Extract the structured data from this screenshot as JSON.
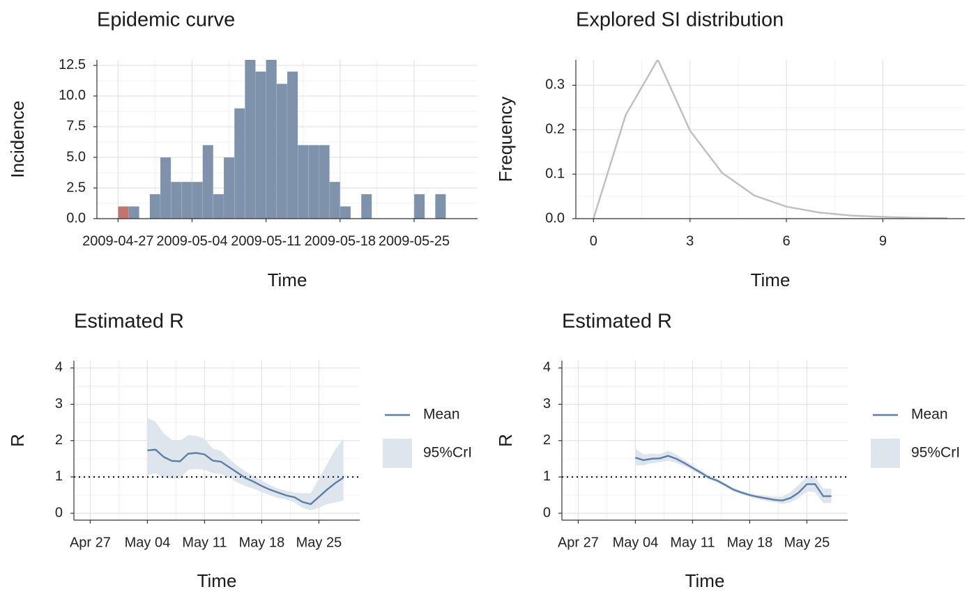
{
  "chart_data": [
    {
      "type": "histogram",
      "title": "Epidemic curve",
      "xlabel": "Time",
      "ylabel": "Incidence",
      "bins": [
        "2009-04-27",
        "2009-04-28",
        "2009-04-29",
        "2009-04-30",
        "2009-05-01",
        "2009-05-02",
        "2009-05-03",
        "2009-05-04",
        "2009-05-05",
        "2009-05-06",
        "2009-05-07",
        "2009-05-08",
        "2009-05-09",
        "2009-05-10",
        "2009-05-11",
        "2009-05-12",
        "2009-05-13",
        "2009-05-14",
        "2009-05-15",
        "2009-05-16",
        "2009-05-17",
        "2009-05-18",
        "2009-05-19",
        "2009-05-20",
        "2009-05-21",
        "2009-05-22",
        "2009-05-23",
        "2009-05-24",
        "2009-05-25",
        "2009-05-26",
        "2009-05-27",
        "2009-05-28"
      ],
      "values": [
        1,
        1,
        0,
        2,
        5,
        3,
        3,
        3,
        6,
        2,
        5,
        9,
        13,
        12,
        13,
        11,
        12,
        6,
        6,
        6,
        3,
        1,
        0,
        2,
        0,
        0,
        0,
        0,
        2,
        0,
        2
      ],
      "colors": [
        "#c47470",
        "#7e93ab",
        "#7e93ab",
        "#7e93ab",
        "#7e93ab",
        "#7e93ab",
        "#7e93ab",
        "#7e93ab",
        "#7e93ab",
        "#7e93ab",
        "#7e93ab",
        "#7e93ab",
        "#7e93ab",
        "#7e93ab",
        "#7e93ab",
        "#7e93ab",
        "#7e93ab",
        "#7e93ab",
        "#7e93ab",
        "#7e93ab",
        "#7e93ab",
        "#7e93ab",
        "#7e93ab",
        "#7e93ab",
        "#7e93ab",
        "#7e93ab",
        "#7e93ab",
        "#7e93ab",
        "#7e93ab",
        "#7e93ab",
        "#7e93ab"
      ],
      "xlim": [
        "2009-04-25",
        "2009-05-31"
      ],
      "xticks": [
        "2009-04-27",
        "2009-05-04",
        "2009-05-11",
        "2009-05-18",
        "2009-05-25"
      ],
      "ylim": [
        0,
        12.95
      ],
      "yticks": [
        {
          "value": 0,
          "label": "0.0"
        },
        2.5,
        {
          "value": 5,
          "label": "5.0"
        },
        7.5,
        {
          "value": 10,
          "label": "10.0"
        },
        12.5
      ],
      "grid": true
    },
    {
      "type": "line",
      "title": "Explored SI distribution",
      "xlabel": "Time",
      "ylabel": "Frequency",
      "x": [
        0,
        1,
        2,
        3,
        4,
        5,
        6,
        7,
        8,
        9,
        10,
        11
      ],
      "series": [
        {
          "color": "#bebebe",
          "values": [
            0,
            0.233,
            0.358,
            0.198,
            0.103,
            0.052,
            0.027,
            0.014,
            0.007,
            0.004,
            0.002,
            0.001
          ]
        }
      ],
      "xlim": [
        -0.55,
        11.55
      ],
      "xticks": [
        0,
        3,
        6,
        9
      ],
      "ylim": [
        0,
        0.357
      ],
      "yticks": [
        {
          "value": 0,
          "label": "0.0"
        },
        0.1,
        0.2,
        0.3
      ],
      "grid": true
    },
    {
      "type": "line",
      "title": "Estimated R",
      "xlabel": "Time",
      "ylabel": "R",
      "x": [
        "May 04",
        "May 05",
        "May 06",
        "May 07",
        "May 08",
        "May 09",
        "May 10",
        "May 11",
        "May 12",
        "May 13",
        "May 14",
        "May 15",
        "May 16",
        "May 17",
        "May 18",
        "May 19",
        "May 20",
        "May 21",
        "May 22",
        "May 23",
        "May 24",
        "May 25",
        "May 26",
        "May 27",
        "May 28"
      ],
      "series": [
        {
          "name": "Mean",
          "color": "#5a7ea6",
          "values": [
            1.73,
            1.75,
            1.55,
            1.44,
            1.43,
            1.64,
            1.66,
            1.62,
            1.45,
            1.42,
            1.27,
            1.12,
            0.97,
            0.87,
            0.75,
            0.65,
            0.57,
            0.49,
            0.44,
            0.31,
            0.25,
            0.45,
            0.65,
            0.83,
            0.98
          ]
        },
        {
          "name": "95%CrI",
          "color": "#dee5ed",
          "upper": [
            2.62,
            2.52,
            2.2,
            2.02,
            2.0,
            2.15,
            2.13,
            2.05,
            1.78,
            1.72,
            1.5,
            1.31,
            1.15,
            1.03,
            0.9,
            0.78,
            0.68,
            0.62,
            0.57,
            0.55,
            0.55,
            0.95,
            1.35,
            1.75,
            2.05
          ],
          "lower": [
            1.05,
            1.1,
            0.98,
            0.95,
            0.95,
            1.2,
            1.22,
            1.2,
            1.1,
            1.08,
            0.98,
            0.85,
            0.75,
            0.68,
            0.58,
            0.5,
            0.42,
            0.38,
            0.3,
            0.15,
            0.08,
            0.15,
            0.25,
            0.3,
            0.35
          ]
        }
      ],
      "hline": 1,
      "xlim": [
        "Apr 25",
        "May 30"
      ],
      "xticks": [
        "Apr 27",
        "May 04",
        "May 11",
        "May 18",
        "May 25"
      ],
      "ylim": [
        -0.19,
        4.2
      ],
      "yticks": [
        0,
        1,
        2,
        3,
        4
      ],
      "grid": true
    },
    {
      "type": "line",
      "title": "Estimated R",
      "xlabel": "Time",
      "ylabel": "R",
      "x": [
        "May 04",
        "May 05",
        "May 06",
        "May 07",
        "May 08",
        "May 09",
        "May 10",
        "May 11",
        "May 12",
        "May 13",
        "May 14",
        "May 15",
        "May 16",
        "May 17",
        "May 18",
        "May 19",
        "May 20",
        "May 21",
        "May 22",
        "May 23",
        "May 24",
        "May 25",
        "May 26",
        "May 27",
        "May 28"
      ],
      "series": [
        {
          "name": "Mean",
          "color": "#5a7ea6",
          "values": [
            1.53,
            1.46,
            1.5,
            1.51,
            1.58,
            1.5,
            1.38,
            1.25,
            1.12,
            0.98,
            0.9,
            0.78,
            0.65,
            0.57,
            0.5,
            0.45,
            0.41,
            0.37,
            0.35,
            0.42,
            0.57,
            0.8,
            0.8,
            0.47,
            0.47
          ]
        },
        {
          "name": "95%CrI",
          "color": "#dee5ed",
          "upper": [
            1.78,
            1.62,
            1.64,
            1.63,
            1.72,
            1.62,
            1.46,
            1.32,
            1.18,
            1.04,
            0.95,
            0.83,
            0.7,
            0.62,
            0.55,
            0.51,
            0.48,
            0.45,
            0.46,
            0.58,
            0.78,
            1.02,
            1.0,
            0.68,
            0.68
          ],
          "lower": [
            1.32,
            1.32,
            1.38,
            1.4,
            1.45,
            1.38,
            1.3,
            1.18,
            1.06,
            0.93,
            0.85,
            0.73,
            0.6,
            0.52,
            0.45,
            0.39,
            0.34,
            0.3,
            0.26,
            0.3,
            0.42,
            0.6,
            0.58,
            0.28,
            0.28
          ]
        }
      ],
      "hline": 1,
      "xlim": [
        "Apr 25",
        "May 30"
      ],
      "xticks": [
        "Apr 27",
        "May 04",
        "May 11",
        "May 18",
        "May 25"
      ],
      "ylim": [
        -0.19,
        4.2
      ],
      "yticks": [
        0,
        1,
        2,
        3,
        4
      ],
      "grid": true
    }
  ]
}
